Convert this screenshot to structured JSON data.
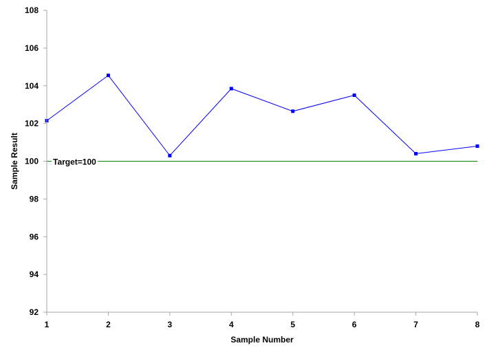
{
  "chart_data": {
    "type": "line",
    "xlabel": "Sample Number",
    "ylabel": "Sample Result",
    "x": [
      1,
      2,
      3,
      4,
      5,
      6,
      7,
      8
    ],
    "xlim": [
      1,
      8
    ],
    "ylim": [
      92,
      108
    ],
    "yticks": [
      92,
      94,
      96,
      98,
      100,
      102,
      104,
      106,
      108
    ],
    "grid": false,
    "series": [
      {
        "values": [
          102.15,
          104.55,
          100.3,
          103.85,
          102.65,
          103.5,
          100.4,
          100.8
        ],
        "color": "#0000ff",
        "marker": "square"
      }
    ],
    "reference_line": {
      "value": 100,
      "label": "Target=100",
      "color": "#008000"
    }
  }
}
